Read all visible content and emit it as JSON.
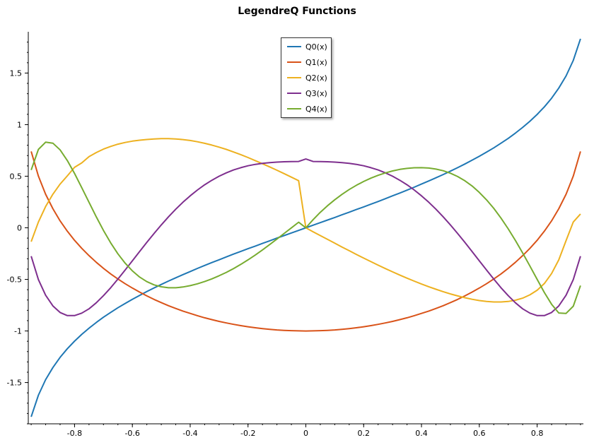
{
  "chart_data": {
    "type": "line",
    "title": "LegendreQ Functions",
    "xlabel": "",
    "ylabel": "",
    "xlim": [
      -0.96,
      0.96
    ],
    "ylim": [
      -1.9,
      1.9
    ],
    "x_ticks": [
      -0.8,
      -0.6,
      -0.4,
      -0.2,
      0,
      0.2,
      0.4,
      0.6,
      0.8
    ],
    "x_tick_labels": [
      "-0.8",
      "-0.6",
      "-0.4",
      "-0.2",
      "0",
      "0.2",
      "0.4",
      "0.6",
      "0.8"
    ],
    "y_ticks": [
      -1.5,
      -1,
      -0.5,
      0,
      0.5,
      1,
      1.5
    ],
    "y_tick_labels": [
      "-1.5",
      "-1",
      "-0.5",
      "0",
      "0.5",
      "1",
      "1.5"
    ],
    "grid": false,
    "legend_position": "top-center",
    "x": [
      -0.95,
      -0.925,
      -0.9,
      -0.875,
      -0.85,
      -0.825,
      -0.8,
      -0.775,
      -0.75,
      -0.725,
      -0.7,
      -0.675,
      -0.65,
      -0.625,
      -0.6,
      -0.575,
      -0.55,
      -0.525,
      -0.5,
      -0.475,
      -0.45,
      -0.425,
      -0.4,
      -0.375,
      -0.35,
      -0.325,
      -0.3,
      -0.275,
      -0.25,
      -0.225,
      -0.2,
      -0.175,
      -0.15,
      -0.125,
      -0.1,
      -0.075,
      -0.05,
      -0.025,
      0,
      0.025,
      0.05,
      0.075,
      0.1,
      0.125,
      0.15,
      0.175,
      0.2,
      0.225,
      0.25,
      0.275,
      0.3,
      0.325,
      0.35,
      0.375,
      0.4,
      0.425,
      0.45,
      0.475,
      0.5,
      0.525,
      0.55,
      0.575,
      0.6,
      0.625,
      0.65,
      0.675,
      0.7,
      0.725,
      0.75,
      0.775,
      0.8,
      0.825,
      0.85,
      0.875,
      0.9,
      0.925,
      0.95
    ],
    "series": [
      {
        "name": "Q0(x)",
        "color": "#1f77b4",
        "values": [
          -1.832,
          -1.623,
          -1.472,
          -1.354,
          -1.256,
          -1.172,
          -1.099,
          -1.033,
          -0.973,
          -0.918,
          -0.867,
          -0.82,
          -0.775,
          -0.733,
          -0.693,
          -0.655,
          -0.618,
          -0.583,
          -0.549,
          -0.516,
          -0.485,
          -0.454,
          -0.424,
          -0.394,
          -0.365,
          -0.337,
          -0.31,
          -0.282,
          -0.255,
          -0.229,
          -0.203,
          -0.177,
          -0.151,
          -0.126,
          -0.1,
          -0.075,
          -0.05,
          -0.025,
          0.0,
          0.025,
          0.05,
          0.075,
          0.1,
          0.126,
          0.151,
          0.177,
          0.203,
          0.229,
          0.255,
          0.282,
          0.31,
          0.337,
          0.365,
          0.394,
          0.424,
          0.454,
          0.485,
          0.516,
          0.549,
          0.583,
          0.618,
          0.655,
          0.693,
          0.733,
          0.775,
          0.82,
          0.867,
          0.918,
          0.973,
          1.033,
          1.099,
          1.172,
          1.256,
          1.354,
          1.472,
          1.623,
          1.832
        ]
      },
      {
        "name": "Q1(x)",
        "color": "#d95319",
        "values": [
          0.74,
          0.501,
          0.325,
          0.185,
          0.067,
          -0.033,
          -0.121,
          -0.199,
          -0.27,
          -0.334,
          -0.393,
          -0.447,
          -0.496,
          -0.542,
          -0.584,
          -0.623,
          -0.66,
          -0.694,
          -0.725,
          -0.755,
          -0.782,
          -0.807,
          -0.83,
          -0.852,
          -0.872,
          -0.89,
          -0.907,
          -0.922,
          -0.936,
          -0.948,
          -0.959,
          -0.969,
          -0.977,
          -0.984,
          -0.99,
          -0.994,
          -0.997,
          -0.999,
          -1.0,
          -0.999,
          -0.997,
          -0.994,
          -0.99,
          -0.984,
          -0.977,
          -0.969,
          -0.959,
          -0.948,
          -0.936,
          -0.922,
          -0.907,
          -0.89,
          -0.872,
          -0.852,
          -0.83,
          -0.807,
          -0.782,
          -0.755,
          -0.725,
          -0.694,
          -0.66,
          -0.623,
          -0.584,
          -0.542,
          -0.496,
          -0.447,
          -0.393,
          -0.334,
          -0.27,
          -0.199,
          -0.121,
          -0.033,
          0.067,
          0.185,
          0.325,
          0.501,
          0.74
        ]
      },
      {
        "name": "Q2(x)",
        "color": "#edb120",
        "values": [
          -0.134,
          0.056,
          0.206,
          0.326,
          0.424,
          0.503,
          0.586,
          0.629,
          0.69,
          0.729,
          0.763,
          0.789,
          0.811,
          0.827,
          0.84,
          0.849,
          0.856,
          0.861,
          0.864,
          0.864,
          0.861,
          0.855,
          0.846,
          0.834,
          0.819,
          0.802,
          0.782,
          0.76,
          0.735,
          0.709,
          0.681,
          0.651,
          0.621,
          0.59,
          0.558,
          0.525,
          0.491,
          0.457,
          0.0,
          -0.038,
          -0.075,
          -0.112,
          -0.149,
          -0.186,
          -0.222,
          -0.258,
          -0.294,
          -0.328,
          -0.362,
          -0.395,
          -0.427,
          -0.458,
          -0.488,
          -0.517,
          -0.545,
          -0.571,
          -0.596,
          -0.619,
          -0.641,
          -0.66,
          -0.678,
          -0.693,
          -0.705,
          -0.714,
          -0.719,
          -0.719,
          -0.714,
          -0.702,
          -0.682,
          -0.65,
          -0.605,
          -0.54,
          -0.444,
          -0.311,
          -0.124,
          0.056,
          0.134
        ]
      },
      {
        "name": "Q3(x)",
        "color": "#7e2f8e",
        "values": [
          -0.275,
          -0.502,
          -0.653,
          -0.757,
          -0.821,
          -0.851,
          -0.851,
          -0.827,
          -0.785,
          -0.727,
          -0.658,
          -0.581,
          -0.497,
          -0.409,
          -0.32,
          -0.23,
          -0.141,
          -0.055,
          0.028,
          0.107,
          0.18,
          0.248,
          0.31,
          0.366,
          0.417,
          0.461,
          0.5,
          0.533,
          0.561,
          0.583,
          0.601,
          0.615,
          0.625,
          0.632,
          0.637,
          0.64,
          0.642,
          0.643,
          0.667,
          0.643,
          0.642,
          0.64,
          0.637,
          0.632,
          0.625,
          0.615,
          0.601,
          0.583,
          0.561,
          0.533,
          0.5,
          0.461,
          0.417,
          0.366,
          0.31,
          0.248,
          0.18,
          0.107,
          0.028,
          -0.055,
          -0.141,
          -0.23,
          -0.32,
          -0.409,
          -0.497,
          -0.581,
          -0.658,
          -0.727,
          -0.785,
          -0.827,
          -0.851,
          -0.851,
          -0.821,
          -0.757,
          -0.653,
          -0.502,
          -0.275
        ]
      },
      {
        "name": "Q4(x)",
        "color": "#77ac30",
        "values": [
          0.56,
          0.76,
          0.83,
          0.82,
          0.755,
          0.652,
          0.527,
          0.389,
          0.247,
          0.107,
          -0.025,
          -0.146,
          -0.252,
          -0.343,
          -0.418,
          -0.477,
          -0.522,
          -0.553,
          -0.572,
          -0.581,
          -0.581,
          -0.574,
          -0.561,
          -0.543,
          -0.521,
          -0.495,
          -0.465,
          -0.432,
          -0.395,
          -0.355,
          -0.311,
          -0.264,
          -0.214,
          -0.162,
          -0.109,
          -0.055,
          -0.001,
          0.054,
          0.0,
          0.078,
          0.15,
          0.214,
          0.272,
          0.324,
          0.371,
          0.412,
          0.449,
          0.481,
          0.509,
          0.532,
          0.551,
          0.566,
          0.576,
          0.582,
          0.583,
          0.579,
          0.569,
          0.553,
          0.529,
          0.497,
          0.456,
          0.405,
          0.343,
          0.271,
          0.188,
          0.094,
          -0.01,
          -0.123,
          -0.244,
          -0.371,
          -0.5,
          -0.627,
          -0.741,
          -0.826,
          -0.83,
          -0.76,
          -0.56
        ]
      }
    ]
  }
}
